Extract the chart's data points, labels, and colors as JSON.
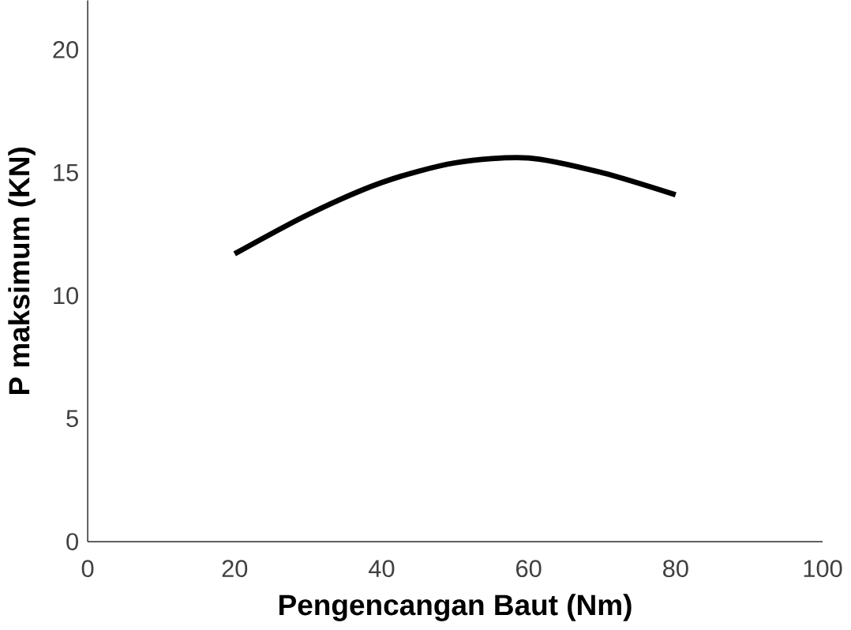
{
  "chart_data": {
    "type": "line",
    "xlabel": "Pengencangan Baut (Nm)",
    "ylabel": "P maksimum (KN)",
    "x": [
      20,
      30,
      40,
      50,
      60,
      70,
      80
    ],
    "series": [
      {
        "color": "#000000",
        "values": [
          11.7,
          13.3,
          14.6,
          15.4,
          15.6,
          15.0,
          14.1
        ]
      }
    ],
    "xlim": [
      0,
      100
    ],
    "xticks": [
      0,
      20,
      40,
      60,
      80,
      100
    ],
    "ylim": [
      0,
      22
    ],
    "yticks": [
      0,
      5,
      10,
      15,
      20
    ]
  }
}
